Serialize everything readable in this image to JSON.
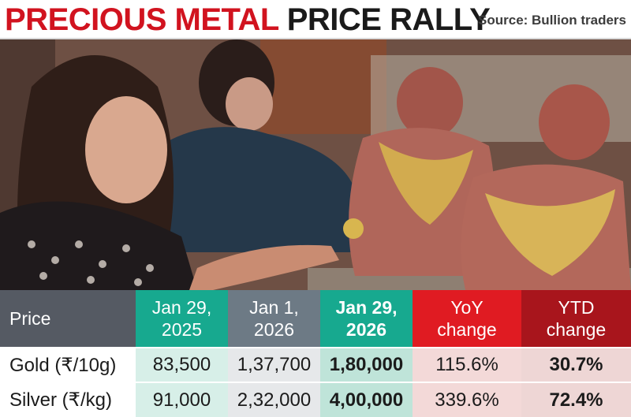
{
  "header": {
    "title_part1": "PRECIOUS METAL",
    "title_part2": "PRICE RALLY",
    "source": "Source: Bullion traders"
  },
  "table": {
    "columns": [
      {
        "line1": "Price",
        "line2": ""
      },
      {
        "line1": "Jan 29,",
        "line2": "2025"
      },
      {
        "line1": "Jan 1,",
        "line2": "2026"
      },
      {
        "line1": "Jan 29,",
        "line2": "2026"
      },
      {
        "line1": "YoY",
        "line2": "change"
      },
      {
        "line1": "YTD",
        "line2": "change"
      }
    ],
    "rows": [
      {
        "label": "Gold (₹/10g)",
        "jan29_2025": "83,500",
        "jan1_2026": "1,37,700",
        "jan29_2026": "1,80,000",
        "yoy": "115.6%",
        "ytd": "30.7%"
      },
      {
        "label": "Silver (₹/kg)",
        "jan29_2025": "91,000",
        "jan1_2026": "2,32,000",
        "jan29_2026": "4,00,000",
        "yoy": "339.6%",
        "ytd": "72.4%"
      }
    ]
  },
  "colors": {
    "title_red": "#d1131f",
    "header_gray": "#555a63",
    "header_teal": "#17a98f",
    "header_slate": "#6d7a85",
    "header_red": "#e01b22",
    "header_darkred": "#a8151c",
    "cell_teal_light": "#d7efe8",
    "cell_slate_light": "#e6e8ea",
    "cell_teal_mid": "#bfe4d9",
    "cell_red_light": "#f3d9d8",
    "cell_darkred_light": "#eed6d5"
  }
}
